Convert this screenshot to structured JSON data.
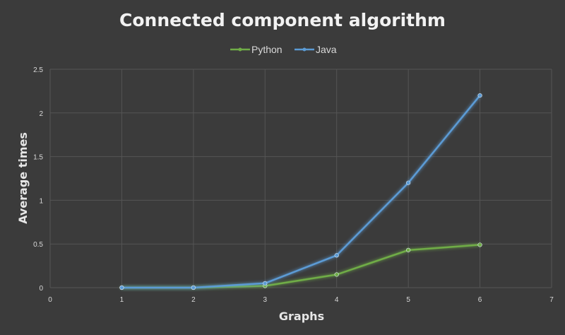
{
  "chart_data": {
    "type": "line",
    "title": "Connected component algorithm",
    "xlabel": "Graphs",
    "ylabel": "Average times",
    "xlim": [
      0,
      7
    ],
    "ylim": [
      0,
      2.5
    ],
    "xticks": [
      "0",
      "1",
      "2",
      "3",
      "4",
      "5",
      "6",
      "7"
    ],
    "yticks": [
      "0",
      "0.5",
      "1",
      "1.5",
      "2",
      "2.5"
    ],
    "grid": true,
    "legend_position": "top",
    "x": [
      1,
      2,
      3,
      4,
      5,
      6
    ],
    "series": [
      {
        "name": "Python",
        "color": "#70ad47",
        "values": [
          0.0,
          0.0,
          0.02,
          0.15,
          0.43,
          0.49
        ]
      },
      {
        "name": "Java",
        "color": "#5b9bd5",
        "values": [
          0.0,
          0.0,
          0.05,
          0.37,
          1.2,
          2.2
        ]
      }
    ]
  }
}
